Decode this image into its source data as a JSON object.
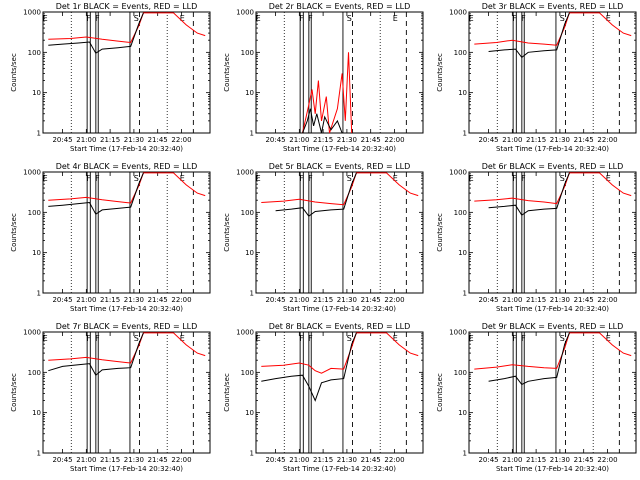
{
  "colors": {
    "events": "#000000",
    "lld": "#ff0000",
    "background": "#ffffff",
    "axes": "#000000"
  },
  "chart_data": [
    {
      "type": "line",
      "title": "Det 1r BLACK = Events, RED = LLD",
      "xlabel": "Start Time (17-Feb-14 20:32:40)",
      "ylabel": "Counts/sec",
      "yscale": "log",
      "ylim": [
        1,
        1000
      ],
      "yticks": [
        "1",
        "10",
        "100",
        "1000"
      ],
      "xticks": [
        "20:45",
        "21:00",
        "21:15",
        "21:30",
        "21:45",
        "22:00"
      ],
      "markers": [
        "E",
        "F",
        "F",
        "S",
        "E"
      ],
      "series": [
        {
          "name": "Events",
          "x": [
            "20:36",
            "20:45",
            "20:55",
            "21:02",
            "21:06",
            "21:10",
            "21:20",
            "21:28",
            "21:33",
            "21:36"
          ],
          "values": [
            150,
            160,
            170,
            180,
            95,
            120,
            130,
            140,
            500,
            950
          ]
        },
        {
          "name": "LLD",
          "x": [
            "20:36",
            "20:50",
            "21:00",
            "21:10",
            "21:20",
            "21:28",
            "21:33",
            "21:36",
            "21:45",
            "21:55",
            "22:03",
            "22:10",
            "22:15"
          ],
          "values": [
            210,
            220,
            240,
            210,
            190,
            175,
            450,
            950,
            950,
            950,
            480,
            300,
            260
          ]
        }
      ]
    },
    {
      "type": "line",
      "title": "Det 2r BLACK = Events, RED = LLD",
      "xlabel": "Start Time (17-Feb-14 20:32:40)",
      "ylabel": "Counts/sec",
      "yscale": "log",
      "ylim": [
        1,
        1000
      ],
      "yticks": [
        "1",
        "10",
        "100",
        "1000"
      ],
      "xticks": [
        "20:45",
        "21:00",
        "21:15",
        "21:30",
        "21:45",
        "22:00"
      ],
      "markers": [
        "E",
        "F",
        "F",
        "S",
        "E"
      ],
      "series": [
        {
          "name": "Events",
          "x": [
            "21:02",
            "21:05",
            "21:07",
            "21:09",
            "21:11",
            "21:14",
            "21:16",
            "21:20",
            "21:24",
            "21:27"
          ],
          "values": [
            1,
            2,
            4,
            1.5,
            3,
            1,
            2.5,
            1.2,
            2,
            1
          ]
        },
        {
          "name": "LLD",
          "x": [
            "21:02",
            "21:06",
            "21:08",
            "21:10",
            "21:12",
            "21:14",
            "21:17",
            "21:19",
            "21:24",
            "21:27",
            "21:29",
            "21:31",
            "21:33"
          ],
          "values": [
            1,
            5,
            12,
            3,
            20,
            2,
            8,
            1,
            4,
            30,
            2,
            100,
            1
          ]
        }
      ]
    },
    {
      "type": "line",
      "title": "Det 3r BLACK = Events, RED = LLD",
      "xlabel": "Start Time (17-Feb-14 20:32:40)",
      "ylabel": "Counts/sec",
      "yscale": "log",
      "ylim": [
        1,
        1000
      ],
      "yticks": [
        "1",
        "10",
        "100",
        "1000"
      ],
      "xticks": [
        "20:45",
        "21:00",
        "21:15",
        "21:30",
        "21:45",
        "22:00"
      ],
      "markers": [
        "E",
        "F",
        "F",
        "S",
        "E"
      ],
      "series": [
        {
          "name": "Events",
          "x": [
            "20:45",
            "20:55",
            "21:02",
            "21:06",
            "21:10",
            "21:20",
            "21:28",
            "21:33",
            "21:36"
          ],
          "values": [
            105,
            115,
            120,
            75,
            100,
            110,
            115,
            500,
            950
          ]
        },
        {
          "name": "LLD",
          "x": [
            "20:36",
            "20:50",
            "21:00",
            "21:10",
            "21:20",
            "21:28",
            "21:33",
            "21:36",
            "21:45",
            "21:55",
            "22:03",
            "22:10",
            "22:15"
          ],
          "values": [
            160,
            175,
            200,
            170,
            160,
            150,
            420,
            950,
            950,
            950,
            480,
            300,
            260
          ]
        }
      ]
    },
    {
      "type": "line",
      "title": "Det 4r BLACK = Events, RED = LLD",
      "xlabel": "Start Time (17-Feb-14 20:32:40)",
      "ylabel": "Counts/sec",
      "yscale": "log",
      "ylim": [
        1,
        1000
      ],
      "yticks": [
        "1",
        "10",
        "100",
        "1000"
      ],
      "xticks": [
        "20:45",
        "21:00",
        "21:15",
        "21:30",
        "21:45",
        "22:00"
      ],
      "markers": [
        "E",
        "F",
        "F",
        "S",
        "E"
      ],
      "series": [
        {
          "name": "Events",
          "x": [
            "20:36",
            "20:45",
            "20:55",
            "21:02",
            "21:06",
            "21:10",
            "21:20",
            "21:28",
            "21:33",
            "21:36"
          ],
          "values": [
            140,
            150,
            165,
            175,
            90,
            115,
            125,
            135,
            500,
            950
          ]
        },
        {
          "name": "LLD",
          "x": [
            "20:36",
            "20:50",
            "21:00",
            "21:10",
            "21:20",
            "21:28",
            "21:33",
            "21:36",
            "21:45",
            "21:55",
            "22:03",
            "22:10",
            "22:15"
          ],
          "values": [
            200,
            215,
            235,
            205,
            185,
            170,
            450,
            950,
            950,
            950,
            480,
            300,
            260
          ]
        }
      ]
    },
    {
      "type": "line",
      "title": "Det 5r BLACK = Events, RED = LLD",
      "xlabel": "Start Time (17-Feb-14 20:32:40)",
      "ylabel": "Counts/sec",
      "yscale": "log",
      "ylim": [
        1,
        1000
      ],
      "yticks": [
        "1",
        "10",
        "100",
        "1000"
      ],
      "xticks": [
        "20:45",
        "21:00",
        "21:15",
        "21:30",
        "21:45",
        "22:00"
      ],
      "markers": [
        "E",
        "F",
        "F",
        "S",
        "E"
      ],
      "series": [
        {
          "name": "Events",
          "x": [
            "20:45",
            "20:55",
            "21:02",
            "21:06",
            "21:10",
            "21:20",
            "21:28",
            "21:33",
            "21:36"
          ],
          "values": [
            110,
            120,
            130,
            80,
            105,
            115,
            120,
            500,
            950
          ]
        },
        {
          "name": "LLD",
          "x": [
            "20:36",
            "20:50",
            "21:00",
            "21:10",
            "21:20",
            "21:28",
            "21:33",
            "21:36",
            "21:45",
            "21:55",
            "22:03",
            "22:10",
            "22:15"
          ],
          "values": [
            175,
            190,
            210,
            180,
            165,
            155,
            430,
            950,
            950,
            950,
            480,
            300,
            260
          ]
        }
      ]
    },
    {
      "type": "line",
      "title": "Det 6r BLACK = Events, RED = LLD",
      "xlabel": "Start Time (17-Feb-14 20:32:40)",
      "ylabel": "Counts/sec",
      "yscale": "log",
      "ylim": [
        1,
        1000
      ],
      "yticks": [
        "1",
        "10",
        "100",
        "1000"
      ],
      "xticks": [
        "20:45",
        "21:00",
        "21:15",
        "21:30",
        "21:45",
        "22:00"
      ],
      "markers": [
        "E",
        "F",
        "F",
        "S",
        "E"
      ],
      "series": [
        {
          "name": "Events",
          "x": [
            "20:45",
            "20:55",
            "21:02",
            "21:06",
            "21:10",
            "21:20",
            "21:28",
            "21:33",
            "21:36"
          ],
          "values": [
            130,
            140,
            150,
            85,
            110,
            120,
            125,
            500,
            950
          ]
        },
        {
          "name": "LLD",
          "x": [
            "20:36",
            "20:50",
            "21:00",
            "21:10",
            "21:20",
            "21:28",
            "21:33",
            "21:36",
            "21:45",
            "21:55",
            "22:03",
            "22:10",
            "22:15"
          ],
          "values": [
            190,
            205,
            225,
            195,
            180,
            165,
            440,
            950,
            950,
            950,
            480,
            300,
            260
          ]
        }
      ]
    },
    {
      "type": "line",
      "title": "Det 7r BLACK = Events, RED = LLD",
      "xlabel": "Start Time (17-Feb-14 20:32:40)",
      "ylabel": "Counts/sec",
      "yscale": "log",
      "ylim": [
        1,
        1000
      ],
      "yticks": [
        "1",
        "10",
        "100",
        "1000"
      ],
      "xticks": [
        "20:45",
        "21:00",
        "21:15",
        "21:30",
        "21:45",
        "22:00"
      ],
      "markers": [
        "E",
        "F",
        "F",
        "S",
        "E"
      ],
      "series": [
        {
          "name": "Events",
          "x": [
            "20:36",
            "20:45",
            "20:55",
            "21:02",
            "21:06",
            "21:10",
            "21:20",
            "21:28",
            "21:33",
            "21:36"
          ],
          "values": [
            110,
            140,
            155,
            165,
            85,
            115,
            125,
            130,
            500,
            950
          ]
        },
        {
          "name": "LLD",
          "x": [
            "20:36",
            "20:50",
            "21:00",
            "21:10",
            "21:20",
            "21:28",
            "21:33",
            "21:36",
            "21:45",
            "21:55",
            "22:03",
            "22:10",
            "22:15"
          ],
          "values": [
            200,
            215,
            235,
            205,
            185,
            170,
            450,
            950,
            950,
            950,
            480,
            300,
            260
          ]
        }
      ]
    },
    {
      "type": "line",
      "title": "Det 8r BLACK = Events, RED = LLD",
      "xlabel": "Start Time (17-Feb-14 20:32:40)",
      "ylabel": "Counts/sec",
      "yscale": "log",
      "ylim": [
        1,
        1000
      ],
      "yticks": [
        "1",
        "10",
        "100",
        "1000"
      ],
      "xticks": [
        "20:45",
        "21:00",
        "21:15",
        "21:30",
        "21:45",
        "22:00"
      ],
      "markers": [
        "E",
        "F",
        "F",
        "S",
        "E"
      ],
      "series": [
        {
          "name": "Events",
          "x": [
            "20:36",
            "20:45",
            "20:55",
            "21:02",
            "21:06",
            "21:10",
            "21:14",
            "21:20",
            "21:28",
            "21:33",
            "21:36"
          ],
          "values": [
            60,
            70,
            80,
            85,
            45,
            20,
            55,
            65,
            70,
            500,
            950
          ]
        },
        {
          "name": "LLD",
          "x": [
            "20:36",
            "20:50",
            "21:00",
            "21:06",
            "21:10",
            "21:14",
            "21:20",
            "21:28",
            "21:33",
            "21:36",
            "21:45",
            "21:55",
            "22:03",
            "22:10",
            "22:15"
          ],
          "values": [
            140,
            150,
            170,
            150,
            110,
            95,
            125,
            120,
            420,
            950,
            950,
            950,
            480,
            300,
            260
          ]
        }
      ]
    },
    {
      "type": "line",
      "title": "Det 9r BLACK = Events, RED = LLD",
      "xlabel": "Start Time (17-Feb-14 20:32:40)",
      "ylabel": "Counts/sec",
      "yscale": "log",
      "ylim": [
        1,
        1000
      ],
      "yticks": [
        "1",
        "10",
        "100",
        "1000"
      ],
      "xticks": [
        "20:45",
        "21:00",
        "21:15",
        "21:30",
        "21:45",
        "22:00"
      ],
      "markers": [
        "E",
        "F",
        "F",
        "S",
        "E"
      ],
      "series": [
        {
          "name": "Events",
          "x": [
            "20:45",
            "20:55",
            "21:02",
            "21:06",
            "21:10",
            "21:20",
            "21:28",
            "21:33",
            "21:36"
          ],
          "values": [
            60,
            70,
            80,
            50,
            60,
            70,
            75,
            500,
            950
          ]
        },
        {
          "name": "LLD",
          "x": [
            "20:36",
            "20:50",
            "21:00",
            "21:10",
            "21:20",
            "21:28",
            "21:33",
            "21:36",
            "21:45",
            "21:55",
            "22:03",
            "22:10",
            "22:15"
          ],
          "values": [
            120,
            135,
            155,
            140,
            130,
            125,
            400,
            950,
            950,
            950,
            480,
            300,
            260
          ]
        }
      ]
    }
  ]
}
